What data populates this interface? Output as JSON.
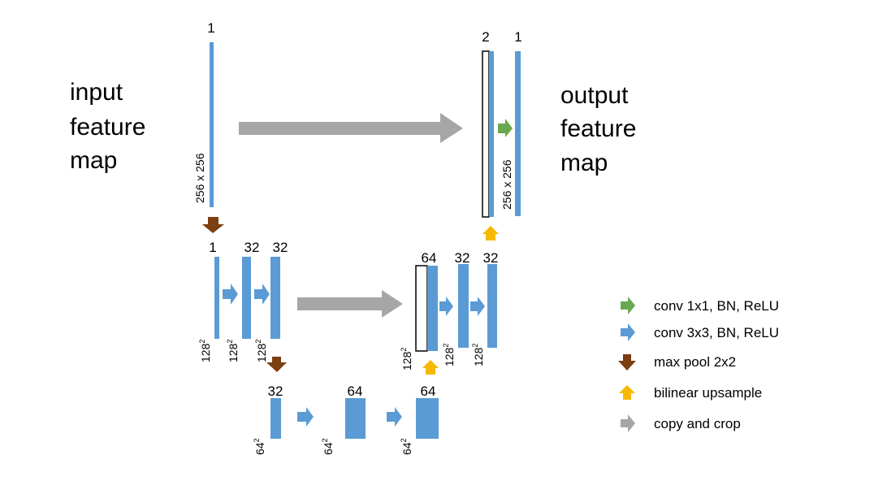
{
  "colors": {
    "blue": "#5b9bd5",
    "green": "#6aa84f",
    "brown": "#7b3f12",
    "orange": "#f6b800",
    "gray": "#a6a6a6"
  },
  "input_label": [
    "input",
    "feature",
    "map"
  ],
  "output_label": [
    "output",
    "feature",
    "map"
  ],
  "channels": {
    "input": "1",
    "out_concat": "2",
    "out_final": "1",
    "l1_a": "1",
    "l1_b": "32",
    "l1_c": "32",
    "l1_up_concat": "64",
    "l1_up_b": "32",
    "l1_up_c": "32",
    "l2_a": "32",
    "l2_b": "64",
    "l2_c": "64"
  },
  "dims": {
    "top": "256 x 256",
    "level1": "128",
    "level2": "64",
    "sup": "2"
  },
  "legend": [
    {
      "icon": "green-arrow-icon",
      "label": "conv 1x1, BN, ReLU"
    },
    {
      "icon": "blue-arrow-icon",
      "label": "conv 3x3, BN, ReLU"
    },
    {
      "icon": "brown-arrow-icon",
      "label": "max pool 2x2"
    },
    {
      "icon": "orange-arrow-icon",
      "label": "bilinear upsample"
    },
    {
      "icon": "gray-arrow-icon",
      "label": "copy and crop"
    }
  ]
}
